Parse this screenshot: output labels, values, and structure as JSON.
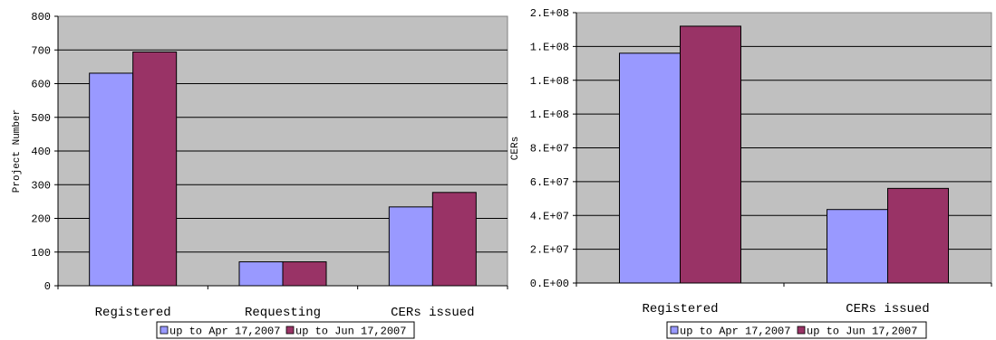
{
  "colors": {
    "plot_bg": "#c0c0c0",
    "series1": "#9999ff",
    "series2": "#993366",
    "grid": "#000000"
  },
  "chart_data": [
    {
      "type": "bar",
      "title": "",
      "xlabel": "",
      "ylabel": "Project Number",
      "ylim": [
        0,
        800
      ],
      "yticks": [
        0,
        100,
        200,
        300,
        400,
        500,
        600,
        700,
        800
      ],
      "ytick_labels": [
        "0",
        "100",
        "200",
        "300",
        "400",
        "500",
        "600",
        "700",
        "800"
      ],
      "categories": [
        "Registered",
        "Requesting",
        "CERs issued"
      ],
      "series": [
        {
          "name": "up to Apr 17,2007",
          "values": [
            631,
            71,
            234
          ]
        },
        {
          "name": "up to Jun 17,2007",
          "values": [
            694,
            71,
            277
          ]
        }
      ],
      "grid": true,
      "legend": "bottom"
    },
    {
      "type": "bar",
      "title": "",
      "xlabel": "",
      "ylabel": "CERs",
      "ylim": [
        0,
        160000000
      ],
      "yticks": [
        0,
        20000000,
        40000000,
        60000000,
        80000000,
        100000000,
        120000000,
        140000000,
        160000000
      ],
      "ytick_labels": [
        "0.E+00",
        "2.E+07",
        "4.E+07",
        "6.E+07",
        "8.E+07",
        "1.E+08",
        "1.E+08",
        "1.E+08",
        "2.E+08"
      ],
      "categories": [
        "Registered",
        "CERs issued"
      ],
      "series": [
        {
          "name": "up to Apr 17,2007",
          "values": [
            136000000,
            43500000
          ]
        },
        {
          "name": "up to Jun 17,2007",
          "values": [
            152000000,
            56000000
          ]
        }
      ],
      "grid": true,
      "legend": "bottom"
    }
  ]
}
